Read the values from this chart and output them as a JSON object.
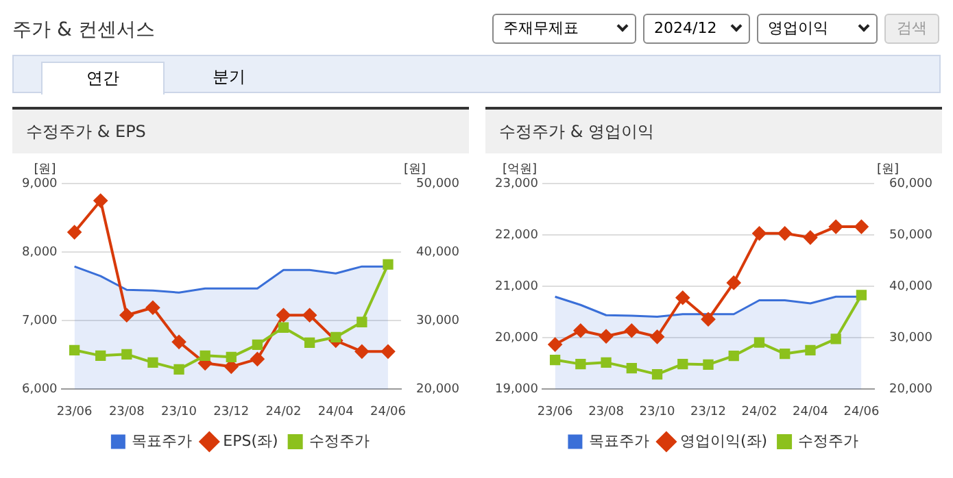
{
  "chart_data": [
    {
      "type": "other",
      "title": "주가 & 컨센서스",
      "annotations": [
        "주재무제표",
        "2024/12",
        "영업이익",
        "검색",
        "연간",
        "분기"
      ]
    },
    {
      "type": "line",
      "title": "수정주가 & EPS",
      "ylabel": "[원]",
      "y2label": "[원]",
      "categories": [
        "23/06",
        null,
        "23/08",
        null,
        "23/10",
        null,
        "23/12",
        null,
        "24/02",
        null,
        "24/04",
        null,
        "24/06"
      ],
      "ylim": [
        6000,
        9000
      ],
      "yticks": [
        {
          "value": 6000,
          "label": "6,000"
        },
        {
          "value": 7000,
          "label": "7,000"
        },
        {
          "value": 8000,
          "label": "8,000"
        },
        {
          "value": 9000,
          "label": "9,000"
        }
      ],
      "y2lim": [
        20000,
        50000
      ],
      "y2ticks": [
        {
          "value": 20000,
          "label": "20,000"
        },
        {
          "value": 30000,
          "label": "30,000"
        },
        {
          "value": 40000,
          "label": "40,000"
        },
        {
          "value": 50000,
          "label": "50,000"
        }
      ],
      "grid": "y",
      "legend": "bottom",
      "series": [
        {
          "name": "목표주가",
          "type": "area",
          "axis": "y2",
          "color": "#3a6fd8",
          "marker": "none",
          "values": [
            37900,
            36500,
            34500,
            34400,
            34100,
            34700,
            34700,
            34700,
            37400,
            37400,
            36900,
            37900,
            37900
          ]
        },
        {
          "name": "EPS(좌)",
          "type": "line",
          "color": "#d83a0a",
          "marker": "diamond",
          "values": [
            8290,
            8750,
            7080,
            7190,
            6690,
            6380,
            6330,
            6440,
            7080,
            7080,
            6710,
            6550,
            6550
          ]
        },
        {
          "name": "수정주가",
          "type": "line",
          "axis": "y2",
          "color": "#8cc11d",
          "marker": "square",
          "values": [
            25700,
            24900,
            25100,
            23900,
            22900,
            24900,
            24700,
            26500,
            29000,
            26800,
            27600,
            29800,
            38200
          ]
        }
      ]
    },
    {
      "type": "line",
      "title": "수정주가 & 영업이익",
      "ylabel": "[억원]",
      "y2label": "[원]",
      "categories": [
        "23/06",
        null,
        "23/08",
        null,
        "23/10",
        null,
        "23/12",
        null,
        "24/02",
        null,
        "24/04",
        null,
        "24/06"
      ],
      "ylim": [
        19000,
        23000
      ],
      "yticks": [
        {
          "value": 19000,
          "label": "19,000"
        },
        {
          "value": 20000,
          "label": "20,000"
        },
        {
          "value": 21000,
          "label": "21,000"
        },
        {
          "value": 22000,
          "label": "22,000"
        },
        {
          "value": 23000,
          "label": "23,000"
        }
      ],
      "y2lim": [
        20000,
        60000
      ],
      "y2ticks": [
        {
          "value": 20000,
          "label": "20,000"
        },
        {
          "value": 30000,
          "label": "30,000"
        },
        {
          "value": 40000,
          "label": "40,000"
        },
        {
          "value": 50000,
          "label": "50,000"
        },
        {
          "value": 60000,
          "label": "60,000"
        }
      ],
      "grid": "y",
      "legend": "bottom",
      "series": [
        {
          "name": "목표주가",
          "type": "area",
          "axis": "y2",
          "color": "#3a6fd8",
          "marker": "none",
          "values": [
            38000,
            36400,
            34400,
            34300,
            34100,
            34600,
            34600,
            34600,
            37300,
            37300,
            36700,
            38000,
            38000
          ]
        },
        {
          "name": "영업이익(좌)",
          "type": "line",
          "color": "#d83a0a",
          "marker": "diamond",
          "values": [
            19870,
            20140,
            20030,
            20140,
            20020,
            20780,
            20360,
            21070,
            22030,
            22030,
            21950,
            22160,
            22160
          ]
        },
        {
          "name": "수정주가",
          "type": "line",
          "axis": "y2",
          "color": "#8cc11d",
          "marker": "square",
          "values": [
            25700,
            24900,
            25200,
            24100,
            22900,
            24900,
            24800,
            26500,
            29100,
            26900,
            27600,
            29800,
            38300
          ]
        }
      ]
    }
  ]
}
